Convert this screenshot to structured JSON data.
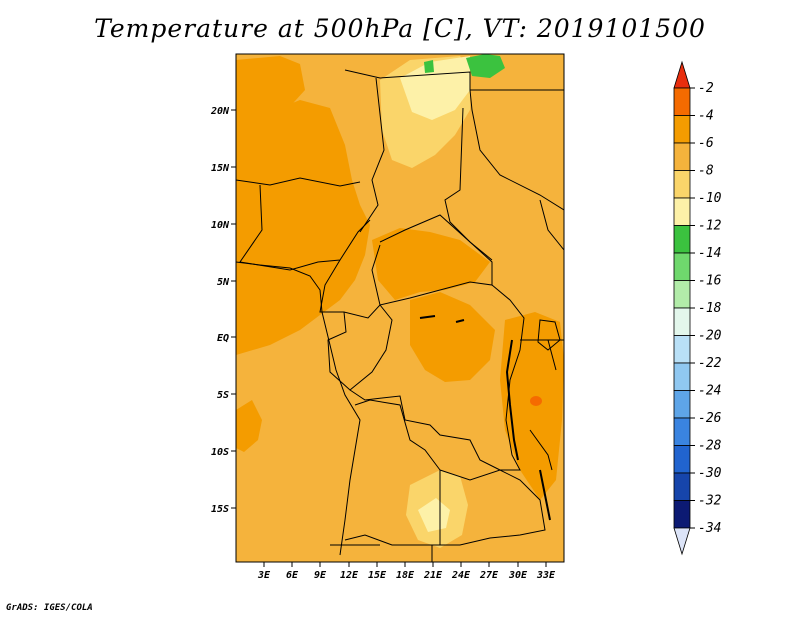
{
  "title": "Temperature at 500hPa [C], VT: 2019101500",
  "credit": "GrADS: IGES/COLA",
  "map": {
    "region": "Central Africa",
    "lat_labels": [
      "20N",
      "15N",
      "10N",
      "5N",
      "EQ",
      "5S",
      "10S",
      "15S"
    ],
    "lon_labels": [
      "3E",
      "6E",
      "9E",
      "12E",
      "15E",
      "18E",
      "21E",
      "24E",
      "27E",
      "30E",
      "33E"
    ]
  },
  "colorbar": {
    "levels": [
      "-2",
      "-4",
      "-6",
      "-8",
      "-10",
      "-12",
      "-14",
      "-16",
      "-18",
      "-20",
      "-22",
      "-24",
      "-26",
      "-28",
      "-30",
      "-32",
      "-34"
    ],
    "colors": [
      "#e82e0e",
      "#f56b00",
      "#f49c00",
      "#f5b33c",
      "#fad56a",
      "#fdf1a8",
      "#3bc23f",
      "#6fd86d",
      "#b2eca9",
      "#e3f7ec",
      "#b9e0f7",
      "#90c8f1",
      "#5ea5e8",
      "#3a84e0",
      "#2164cf",
      "#1645ab",
      "#0c1a73"
    ],
    "under_color": "#dce4f8"
  }
}
